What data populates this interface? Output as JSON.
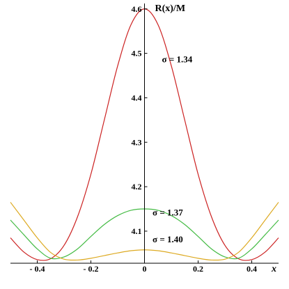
{
  "chart_data": {
    "type": "line",
    "title": "",
    "ylabel": "R(x)/M",
    "xlabel": "x",
    "xlim": [
      -0.5,
      0.5
    ],
    "ylim": [
      4.02,
      4.62
    ],
    "x_ticks": [
      {
        "value": -0.4,
        "label": "- 0.4"
      },
      {
        "value": -0.2,
        "label": "- 0.2"
      },
      {
        "value": 0,
        "label": "0"
      },
      {
        "value": 0.2,
        "label": "0.2"
      },
      {
        "value": 0.4,
        "label": "0.4"
      }
    ],
    "y_ticks": [
      {
        "value": 4.1,
        "label": "4.1"
      },
      {
        "value": 4.2,
        "label": "4.2"
      },
      {
        "value": 4.3,
        "label": "4.3"
      },
      {
        "value": 4.4,
        "label": "4.4"
      },
      {
        "value": 4.5,
        "label": "4.5"
      },
      {
        "value": 4.6,
        "label": "4.6"
      }
    ],
    "grid": false,
    "series": [
      {
        "name": "σ = 1.34",
        "color": "#cc2222",
        "x": [
          -0.5,
          -0.45,
          -0.4,
          -0.35,
          -0.3,
          -0.25,
          -0.2,
          -0.15,
          -0.1,
          -0.05,
          0,
          0.05,
          0.1,
          0.15,
          0.2,
          0.25,
          0.3,
          0.35,
          0.4,
          0.45,
          0.5
        ],
        "y": [
          4.085,
          4.053,
          4.036,
          4.038,
          4.068,
          4.132,
          4.228,
          4.35,
          4.472,
          4.565,
          4.6,
          4.565,
          4.472,
          4.35,
          4.228,
          4.132,
          4.068,
          4.038,
          4.036,
          4.053,
          4.085
        ]
      },
      {
        "name": "σ = 1.37",
        "color": "#44bb44",
        "x": [
          -0.5,
          -0.45,
          -0.4,
          -0.35,
          -0.3,
          -0.25,
          -0.2,
          -0.15,
          -0.1,
          -0.05,
          0,
          0.05,
          0.1,
          0.15,
          0.2,
          0.25,
          0.3,
          0.35,
          0.4,
          0.45,
          0.5
        ],
        "y": [
          4.125,
          4.092,
          4.06,
          4.039,
          4.042,
          4.06,
          4.088,
          4.115,
          4.135,
          4.147,
          4.15,
          4.147,
          4.135,
          4.115,
          4.088,
          4.06,
          4.042,
          4.039,
          4.06,
          4.092,
          4.125
        ]
      },
      {
        "name": "σ = 1.40",
        "color": "#ddaa22",
        "x": [
          -0.5,
          -0.45,
          -0.4,
          -0.35,
          -0.3,
          -0.25,
          -0.2,
          -0.15,
          -0.1,
          -0.05,
          0,
          0.05,
          0.1,
          0.15,
          0.2,
          0.25,
          0.3,
          0.35,
          0.4,
          0.45,
          0.5
        ],
        "y": [
          4.165,
          4.125,
          4.085,
          4.052,
          4.037,
          4.035,
          4.039,
          4.045,
          4.051,
          4.056,
          4.058,
          4.056,
          4.051,
          4.045,
          4.039,
          4.035,
          4.037,
          4.052,
          4.085,
          4.125,
          4.165
        ]
      }
    ]
  }
}
